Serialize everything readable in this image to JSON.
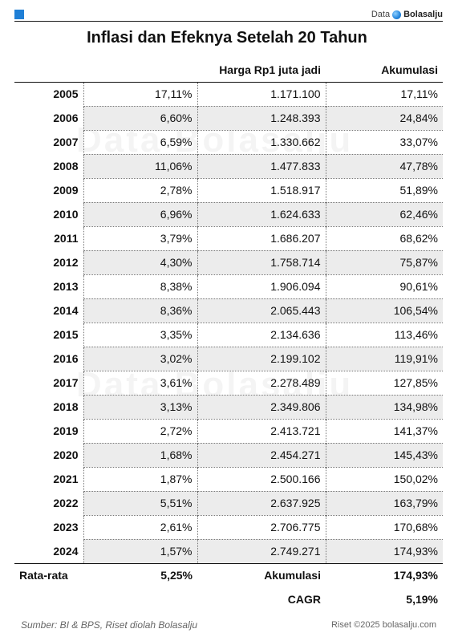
{
  "brand": {
    "prefix": "Data",
    "name": "Bolasalju",
    "accent": "#1f7fd6"
  },
  "watermark": "Data Bolasalju",
  "chart_data": {
    "type": "table",
    "title": "Inflasi dan Efeknya Setelah 20 Tahun",
    "columns": [
      "",
      "",
      "Harga Rp1 juta jadi",
      "Akumulasi"
    ],
    "rows": [
      {
        "year": "2005",
        "inflation": "17,11%",
        "price": "1.171.100",
        "cumulative": "17,11%"
      },
      {
        "year": "2006",
        "inflation": "6,60%",
        "price": "1.248.393",
        "cumulative": "24,84%"
      },
      {
        "year": "2007",
        "inflation": "6,59%",
        "price": "1.330.662",
        "cumulative": "33,07%"
      },
      {
        "year": "2008",
        "inflation": "11,06%",
        "price": "1.477.833",
        "cumulative": "47,78%"
      },
      {
        "year": "2009",
        "inflation": "2,78%",
        "price": "1.518.917",
        "cumulative": "51,89%"
      },
      {
        "year": "2010",
        "inflation": "6,96%",
        "price": "1.624.633",
        "cumulative": "62,46%"
      },
      {
        "year": "2011",
        "inflation": "3,79%",
        "price": "1.686.207",
        "cumulative": "68,62%"
      },
      {
        "year": "2012",
        "inflation": "4,30%",
        "price": "1.758.714",
        "cumulative": "75,87%"
      },
      {
        "year": "2013",
        "inflation": "8,38%",
        "price": "1.906.094",
        "cumulative": "90,61%"
      },
      {
        "year": "2014",
        "inflation": "8,36%",
        "price": "2.065.443",
        "cumulative": "106,54%"
      },
      {
        "year": "2015",
        "inflation": "3,35%",
        "price": "2.134.636",
        "cumulative": "113,46%"
      },
      {
        "year": "2016",
        "inflation": "3,02%",
        "price": "2.199.102",
        "cumulative": "119,91%"
      },
      {
        "year": "2017",
        "inflation": "3,61%",
        "price": "2.278.489",
        "cumulative": "127,85%"
      },
      {
        "year": "2018",
        "inflation": "3,13%",
        "price": "2.349.806",
        "cumulative": "134,98%"
      },
      {
        "year": "2019",
        "inflation": "2,72%",
        "price": "2.413.721",
        "cumulative": "141,37%"
      },
      {
        "year": "2020",
        "inflation": "1,68%",
        "price": "2.454.271",
        "cumulative": "145,43%"
      },
      {
        "year": "2021",
        "inflation": "1,87%",
        "price": "2.500.166",
        "cumulative": "150,02%"
      },
      {
        "year": "2022",
        "inflation": "5,51%",
        "price": "2.637.925",
        "cumulative": "163,79%"
      },
      {
        "year": "2023",
        "inflation": "2,61%",
        "price": "2.706.775",
        "cumulative": "170,68%"
      },
      {
        "year": "2024",
        "inflation": "1,57%",
        "price": "2.749.271",
        "cumulative": "174,93%"
      }
    ],
    "summary": {
      "average_label": "Rata-rata",
      "average_value": "5,25%",
      "cumulative_label": "Akumulasi",
      "cumulative_value": "174,93%",
      "cagr_label": "CAGR",
      "cagr_value": "5,19%"
    }
  },
  "footer": {
    "source": "Sumber: BI & BPS, Riset diolah Bolasalju",
    "copyright": "Riset ©2025 bolasalju.com"
  }
}
